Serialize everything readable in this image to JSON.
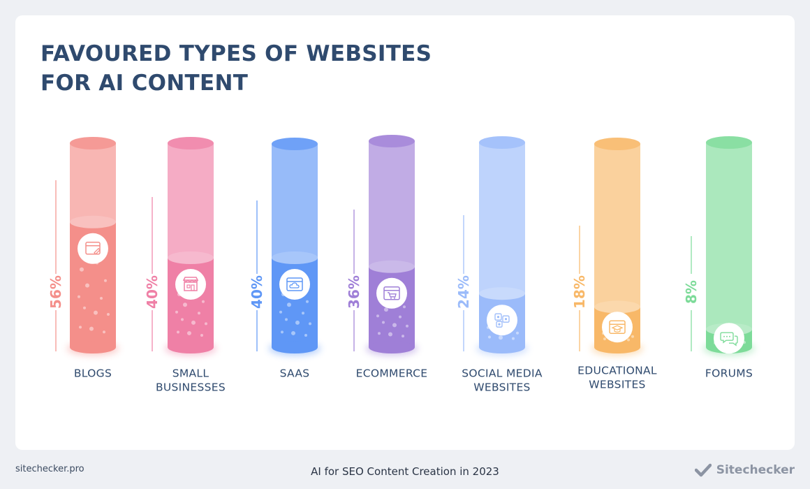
{
  "title_lines": [
    "FAVOURED TYPES OF WEBSITES",
    "FOR AI CONTENT"
  ],
  "footer": {
    "left": "sitechecker.pro",
    "center": "AI for SEO Content Creation in 2023",
    "brand": "Sitechecker"
  },
  "chart_data": {
    "type": "bar",
    "title": "FAVOURED TYPES OF WEBSITES FOR AI CONTENT",
    "categories": [
      "BLOGS",
      "SMALL BUSINESSES",
      "SAAS",
      "ECOMMERCE",
      "SOCIAL MEDIA WEBSITES",
      "EDUCATIONAL WEBSITES",
      "FORUMS"
    ],
    "category_lines": [
      [
        "BLOGS"
      ],
      [
        "SMALL",
        "BUSINESSES"
      ],
      [
        "SAAS"
      ],
      [
        "ECOMMERCE"
      ],
      [
        "SOCIAL MEDIA",
        "WEBSITES"
      ],
      [
        "EDUCATIONAL",
        "WEBSITES"
      ],
      [
        "FORUMS"
      ]
    ],
    "values": [
      56,
      40,
      40,
      36,
      24,
      18,
      8
    ],
    "value_labels": [
      "56%",
      "40%",
      "40%",
      "36%",
      "24%",
      "18%",
      "8%"
    ],
    "icons": [
      "browser-edit-icon",
      "storefront-icon",
      "cloud-window-icon",
      "cart-window-icon",
      "share-network-icon",
      "graduation-cap-icon",
      "chat-bubbles-icon"
    ],
    "colors": [
      "#f48f8a",
      "#ef80a6",
      "#5f97f6",
      "#9f7fd7",
      "#9bbbfa",
      "#f8b868",
      "#7ddb99"
    ],
    "ylim": [
      0,
      100
    ],
    "grid": false,
    "legend": "none"
  }
}
